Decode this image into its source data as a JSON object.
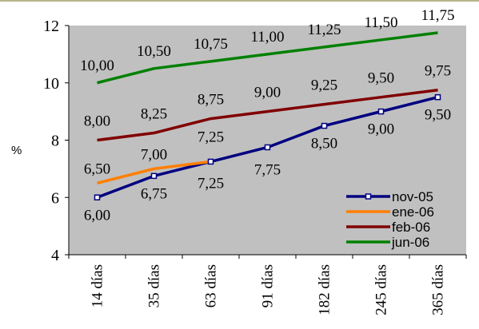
{
  "chart_data": {
    "type": "line",
    "categories": [
      "14 días",
      "35 días",
      "63 días",
      "91 días",
      "182 días",
      "245 días",
      "365 días"
    ],
    "ylabel": "%",
    "xlabel": "",
    "ylim": [
      4,
      12
    ],
    "yticks": [
      "4",
      "6",
      "8",
      "10",
      "12"
    ],
    "grid": false,
    "legend_position": "bottom-right",
    "background": "#c0c0c0",
    "series": [
      {
        "name": "nov-05",
        "color": "#000080",
        "marker": "square",
        "values": [
          6.0,
          6.75,
          7.25,
          7.75,
          8.5,
          9.0,
          9.5
        ],
        "labels": [
          "6,00",
          "6,75",
          "7,25",
          "7,75",
          "8,50",
          "9,00",
          "9,50"
        ]
      },
      {
        "name": "ene-06",
        "color": "#ff7f00",
        "marker": "none",
        "values": [
          6.5,
          7.0,
          7.25,
          null,
          null,
          null,
          null
        ],
        "labels": [
          "6,50",
          "7,00",
          "7,25",
          null,
          null,
          null,
          null
        ]
      },
      {
        "name": "feb-06",
        "color": "#800000",
        "marker": "none",
        "values": [
          8.0,
          8.25,
          8.75,
          9.0,
          9.25,
          9.5,
          9.75
        ],
        "labels": [
          "8,00",
          "8,25",
          "8,75",
          "9,00",
          "9,25",
          "9,50",
          "9,75"
        ]
      },
      {
        "name": "jun-06",
        "color": "#008000",
        "marker": "none",
        "values": [
          10.0,
          10.5,
          10.75,
          11.0,
          11.25,
          11.5,
          11.75
        ],
        "labels": [
          "10,00",
          "10,50",
          "10,75",
          "11,00",
          "11,25",
          "11,50",
          "11,75"
        ]
      }
    ]
  }
}
